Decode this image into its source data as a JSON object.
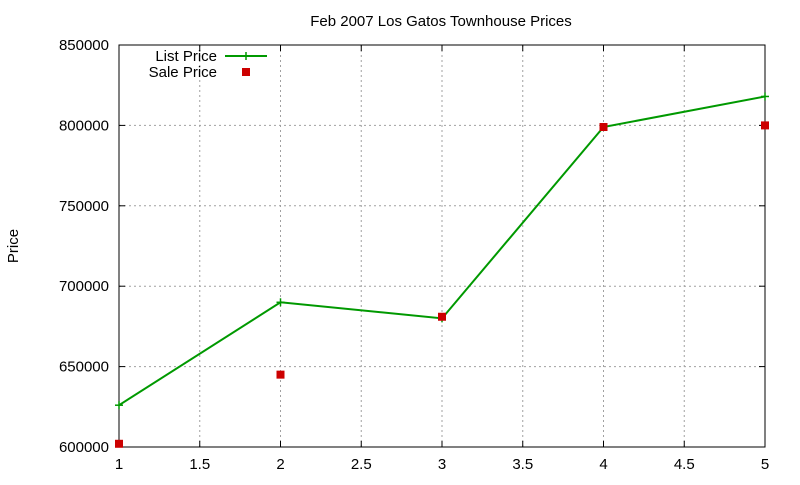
{
  "chart_data": {
    "type": "line",
    "title": "Feb 2007 Los Gatos Townhouse Prices",
    "xlabel": "",
    "ylabel": "Price",
    "xlim": [
      1,
      5
    ],
    "ylim": [
      600000,
      850000
    ],
    "xticks": [
      1,
      1.5,
      2,
      2.5,
      3,
      3.5,
      4,
      4.5,
      5
    ],
    "xtick_labels": [
      "1",
      "1.5",
      "2",
      "2.5",
      "3",
      "3.5",
      "4",
      "4.5",
      "5"
    ],
    "yticks": [
      600000,
      650000,
      700000,
      750000,
      800000,
      850000
    ],
    "ytick_labels": [
      "600000",
      "650000",
      "700000",
      "750000",
      "800000",
      "850000"
    ],
    "grid": true,
    "legend_position": "top-left",
    "series": [
      {
        "name": "List Price",
        "style": "linespoints",
        "marker": "plus",
        "color": "#009900",
        "x": [
          1,
          2,
          3,
          4,
          5
        ],
        "y": [
          626000,
          690000,
          680000,
          799000,
          818000
        ]
      },
      {
        "name": "Sale Price",
        "style": "points",
        "marker": "square",
        "color": "#cc0000",
        "x": [
          1,
          2,
          3,
          4,
          5
        ],
        "y": [
          602000,
          645000,
          681000,
          799000,
          800000
        ]
      }
    ]
  }
}
